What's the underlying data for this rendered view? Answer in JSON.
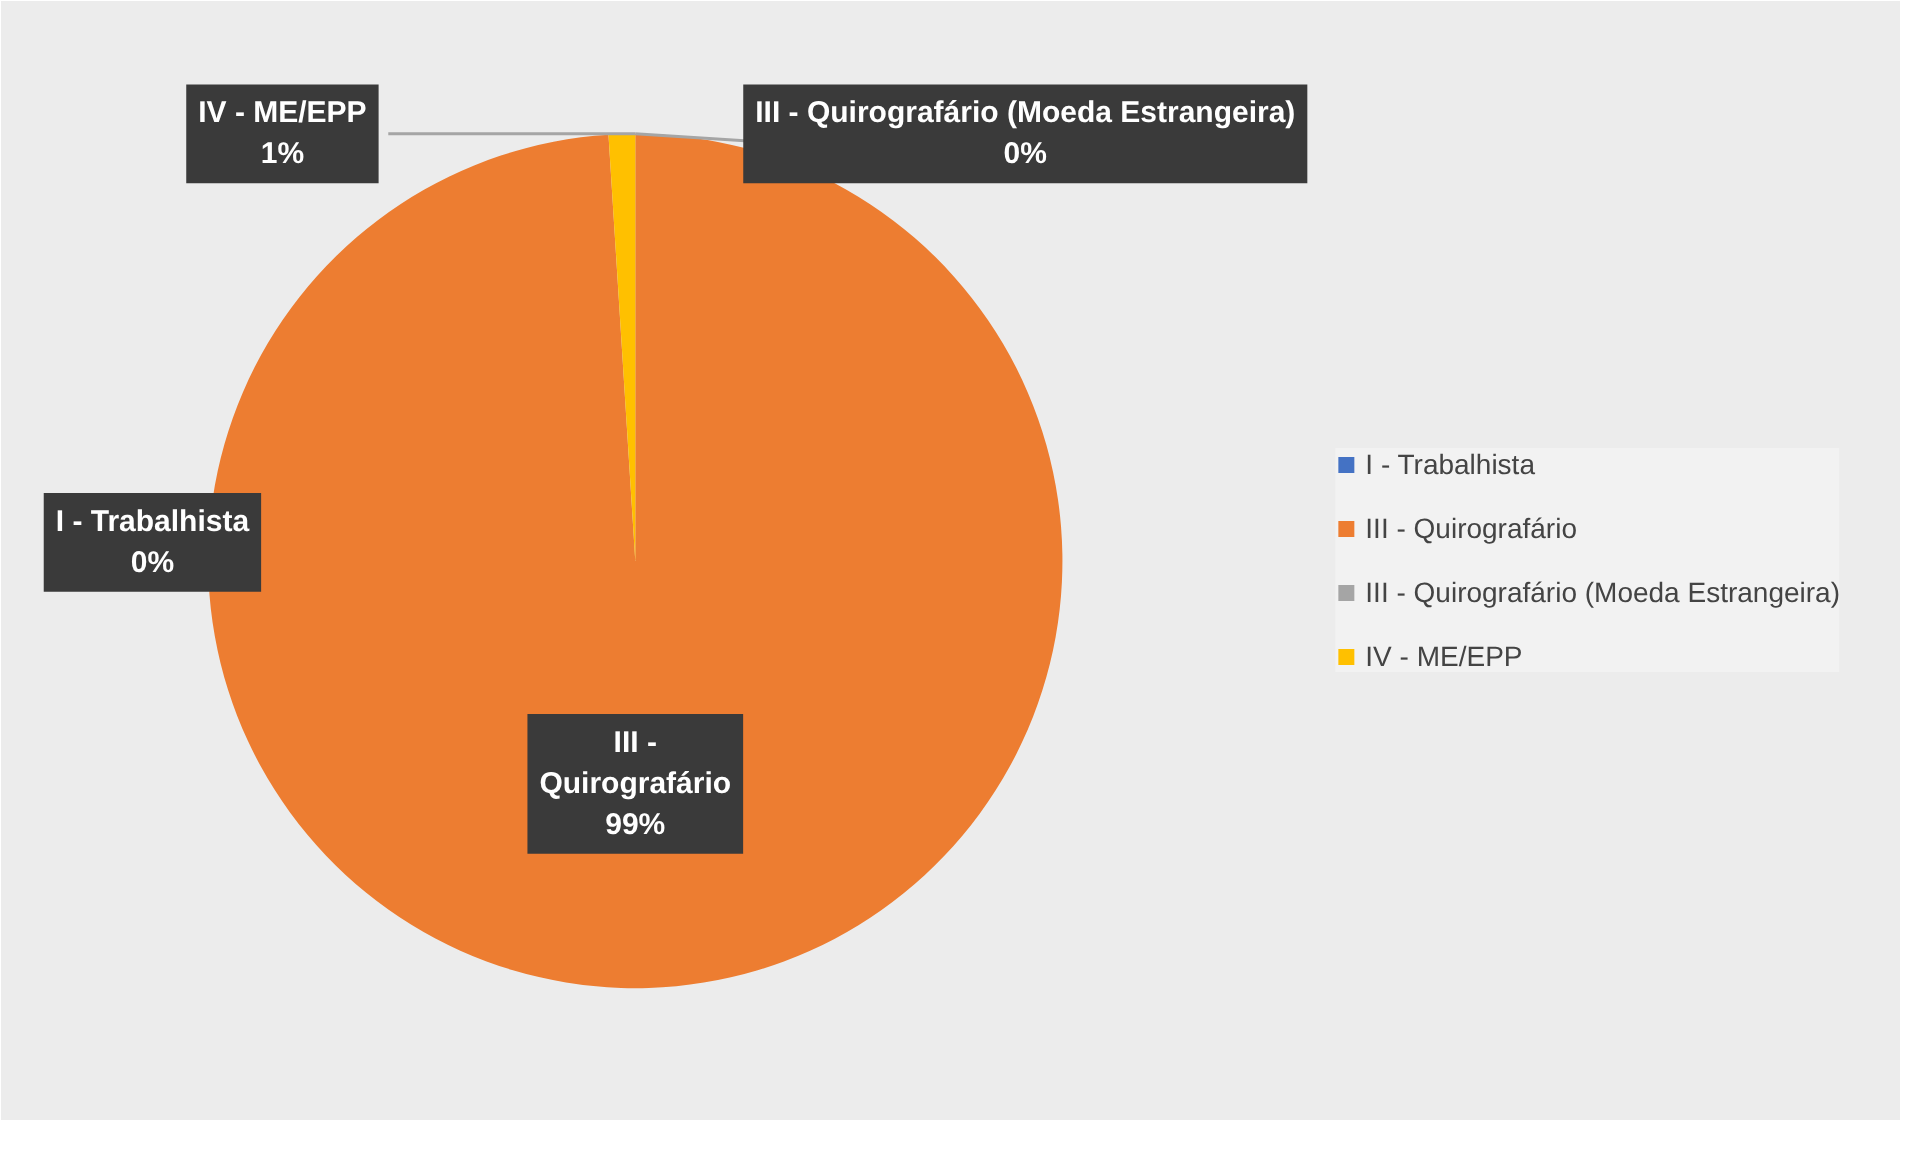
{
  "chart_data": {
    "type": "pie",
    "categories": [
      "I - Trabalhista",
      "III - Quirografário",
      "III - Quirografário (Moeda Estrangeira)",
      "IV - ME/EPP"
    ],
    "values": [
      0,
      99,
      0,
      1
    ],
    "colors": [
      "#4472c4",
      "#ed7d31",
      "#a5a5a5",
      "#ffc000"
    ],
    "value_labels": [
      "0%",
      "99%",
      "0%",
      "1%"
    ],
    "legend": "right"
  }
}
